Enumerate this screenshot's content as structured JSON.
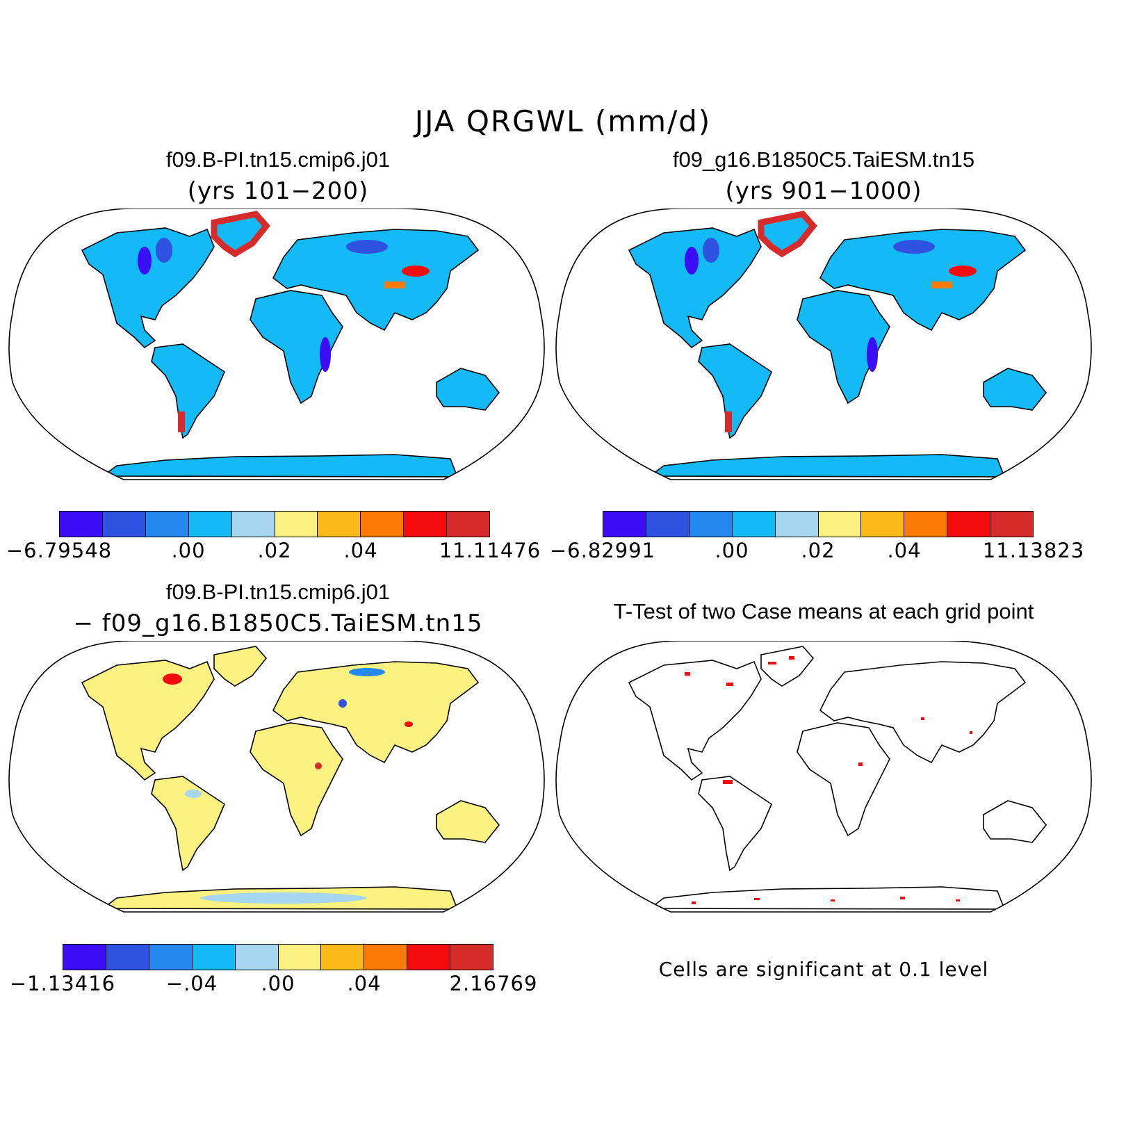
{
  "title": "JJA QRGWL (mm/d)",
  "palette": [
    "#3b0ef5",
    "#2f52e0",
    "#2388f0",
    "#14baf5",
    "#a6d6f0",
    "#fbf282",
    "#fbb919",
    "#fb7a06",
    "#f40c0c",
    "#d62b2b"
  ],
  "panels": {
    "top_left": {
      "title": "f09.B-PI.tn15.cmip6.j01",
      "subtitle": "(yrs 101−200)",
      "land_color": "#14baf5",
      "labelbar": {
        "ticks": [
          "−6.79548",
          ".00",
          ".02",
          ".04",
          "11.11476"
        ]
      }
    },
    "top_right": {
      "title": "f09_g16.B1850C5.TaiESM.tn15",
      "subtitle": "(yrs 901−1000)",
      "land_color": "#14baf5",
      "labelbar": {
        "ticks": [
          "−6.82991",
          ".00",
          ".02",
          ".04",
          "11.13823"
        ]
      }
    },
    "bottom_left": {
      "title": "f09.B-PI.tn15.cmip6.j01",
      "subtitle": "− f09_g16.B1850C5.TaiESM.tn15",
      "land_color": "#fbf282",
      "labelbar": {
        "ticks": [
          "−1.13416",
          "−.04",
          ".00",
          ".04",
          "2.16769"
        ]
      }
    },
    "bottom_right": {
      "title": "T-Test of two Case means at each grid point",
      "land_color": "#ffffff",
      "note": "Cells are significant at 0.1 level"
    }
  }
}
